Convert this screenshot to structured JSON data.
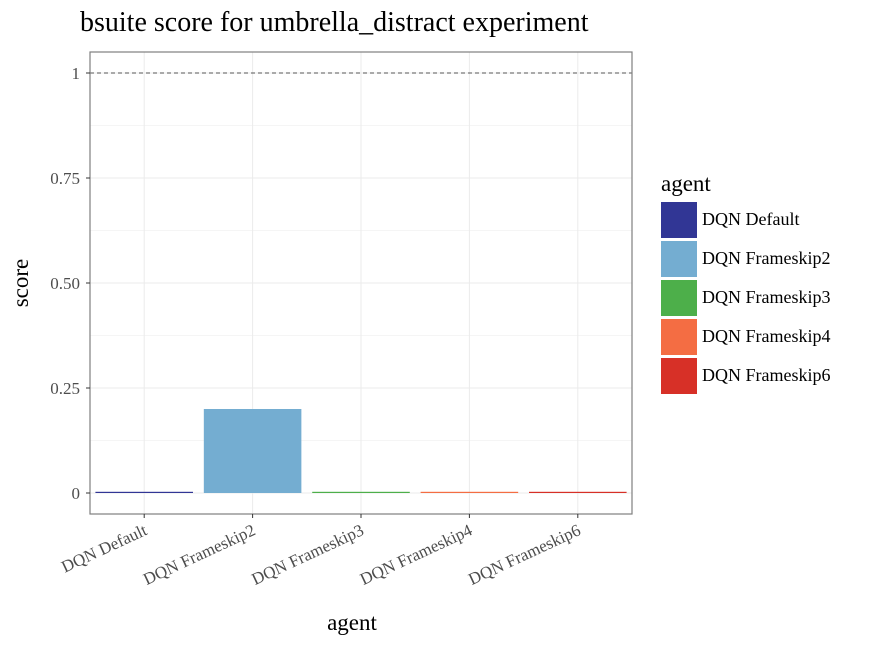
{
  "chart_data": {
    "type": "bar",
    "title": "bsuite score for umbrella_distract experiment",
    "xlabel": "agent",
    "ylabel": "score",
    "categories": [
      "DQN Default",
      "DQN Frameskip2",
      "DQN Frameskip3",
      "DQN Frameskip4",
      "DQN Frameskip6"
    ],
    "values": [
      0.0,
      0.2,
      0.0,
      0.0,
      0.0
    ],
    "colors": [
      "#313695",
      "#74add1",
      "#4daf4a",
      "#f46d43",
      "#d73027"
    ],
    "ylim": [
      -0.05,
      1.05
    ],
    "yticks": [
      0,
      0.25,
      0.5,
      0.75,
      1
    ],
    "ytick_labels": [
      "0",
      "0.25",
      "0.50",
      "0.75",
      "1"
    ],
    "reference_line": 1,
    "grid": true,
    "legend": {
      "title": "agent",
      "position": "right",
      "entries": [
        "DQN Default",
        "DQN Frameskip2",
        "DQN Frameskip3",
        "DQN Frameskip4",
        "DQN Frameskip6"
      ]
    }
  }
}
